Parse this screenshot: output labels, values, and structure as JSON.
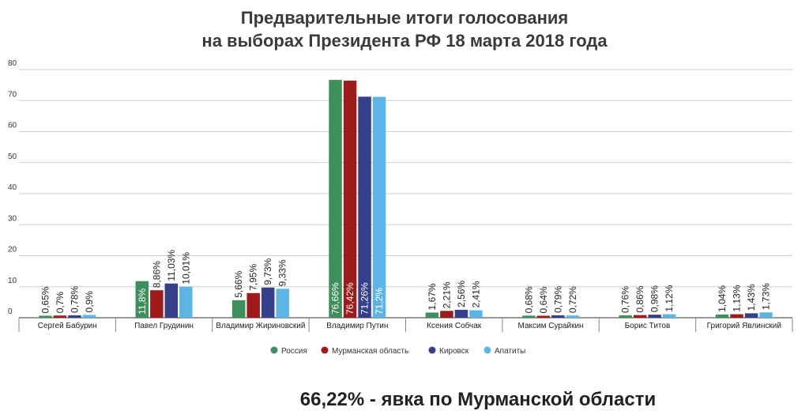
{
  "chart_data": {
    "type": "bar",
    "title_lines": [
      "Предварительные итоги голосования",
      "на выборах Президента РФ 18 марта 2018 года"
    ],
    "categories": [
      "Сергей Бабурин",
      "Павел Грудинин",
      "Владимир Жириновский",
      "Владимир Путин",
      "Ксения Собчак",
      "Максим Сурайкин",
      "Борис Титов",
      "Григорий Явлинский"
    ],
    "series": [
      {
        "name": "Россия",
        "color": "#3d8f5c",
        "values": [
          0.65,
          11.8,
          5.66,
          76.66,
          1.67,
          0.68,
          0.76,
          1.04
        ],
        "labels": [
          "0,65%",
          "11,8%",
          "5,66%",
          "76,66%",
          "1,67%",
          "0,68%",
          "0,76%",
          "1,04%"
        ]
      },
      {
        "name": "Мурманская область",
        "color": "#9e1b1b",
        "values": [
          0.7,
          8.86,
          7.95,
          76.42,
          2.21,
          0.64,
          0.86,
          1.13
        ],
        "labels": [
          "0,7%",
          "8,86%",
          "7,95%",
          "76,42%",
          "2,21%",
          "0,64%",
          "0,86%",
          "1,13%"
        ]
      },
      {
        "name": "Кировск",
        "color": "#353f8a",
        "values": [
          0.78,
          11.03,
          9.73,
          71.26,
          2.56,
          0.79,
          0.98,
          1.43
        ],
        "labels": [
          "0,78%",
          "11,03%",
          "9,73%",
          "71,26%",
          "2,56%",
          "0,79%",
          "0,98%",
          "1,43%"
        ]
      },
      {
        "name": "Апатиты",
        "color": "#5db4e6",
        "values": [
          0.9,
          10.01,
          9.33,
          71.2,
          2.41,
          0.72,
          1.12,
          1.73
        ],
        "labels": [
          "0,9%",
          "10,01%",
          "9,33%",
          "71,2%",
          "2,41%",
          "0,72%",
          "1,12%",
          "1,73%"
        ]
      }
    ],
    "yticks": [
      "0",
      "10",
      "20",
      "30",
      "40",
      "50",
      "60",
      "70",
      "80"
    ],
    "ylim": [
      0,
      80
    ],
    "grid": true,
    "legend_position": "bottom-center",
    "inside_label_categories": [
      "Владимир Путин"
    ],
    "inside_label_extra": {
      "Павел Грудинин": [
        0
      ]
    }
  },
  "footer": {
    "turnout": "66,22% - явка по Мурманской области"
  }
}
